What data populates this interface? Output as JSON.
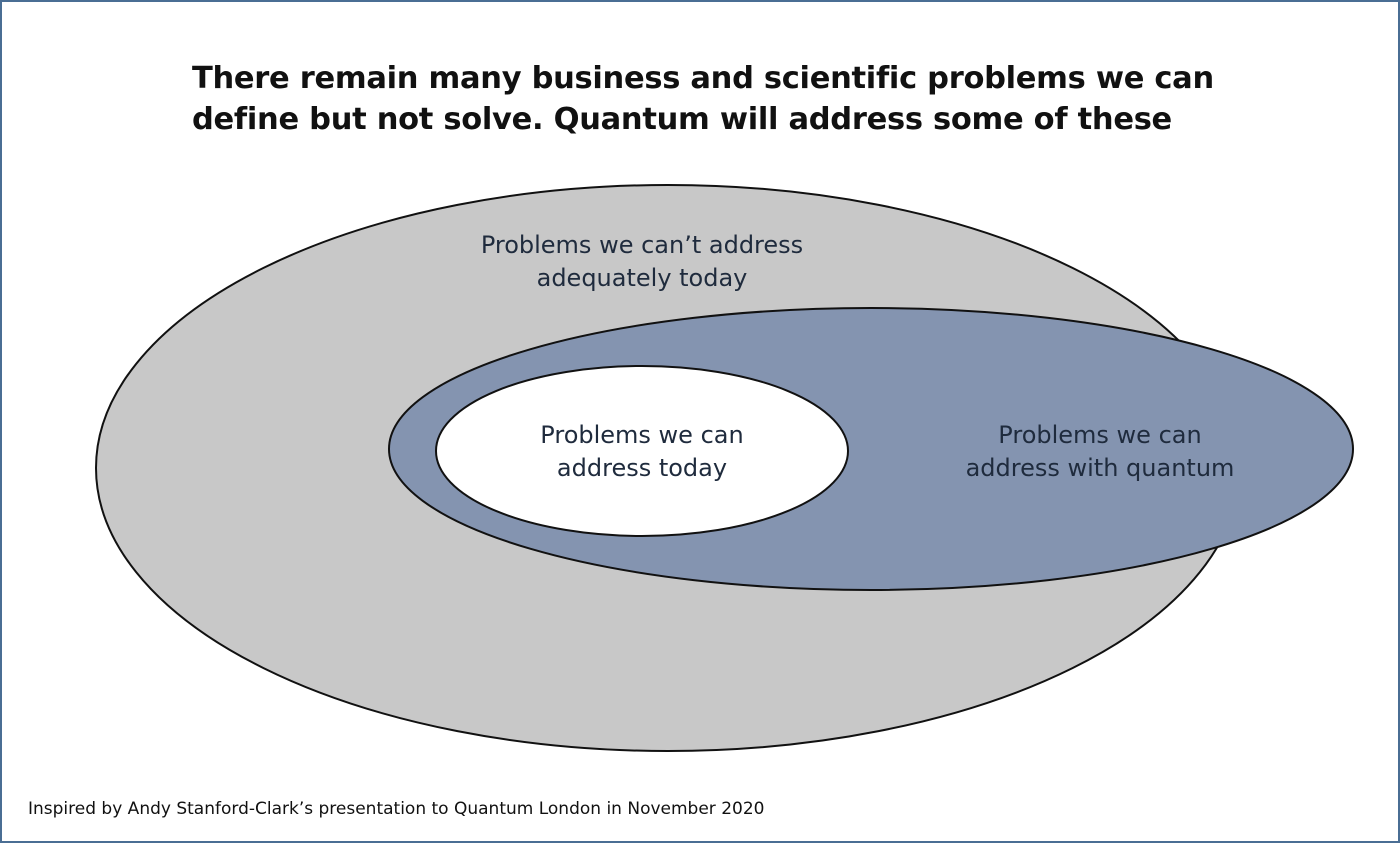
{
  "title_lines": [
    "There remain many business and scientific problems we can",
    "define but not solve. Quantum will address some of these"
  ],
  "regions": {
    "cant_address": {
      "lines": [
        "Problems we can’t address",
        "adequately today"
      ],
      "fill": "#c8c8c8"
    },
    "quantum": {
      "lines": [
        "Problems we can",
        "address with quantum"
      ],
      "fill": "#8494b0"
    },
    "today": {
      "lines": [
        "Problems we can",
        "address today"
      ],
      "fill": "#ffffff"
    }
  },
  "footer": "Inspired by Andy Stanford-Clark’s presentation to Quantum London in November 2020",
  "colors": {
    "frame_border": "#4a6e94",
    "outline": "#111111",
    "text": "#1f2b3d"
  }
}
